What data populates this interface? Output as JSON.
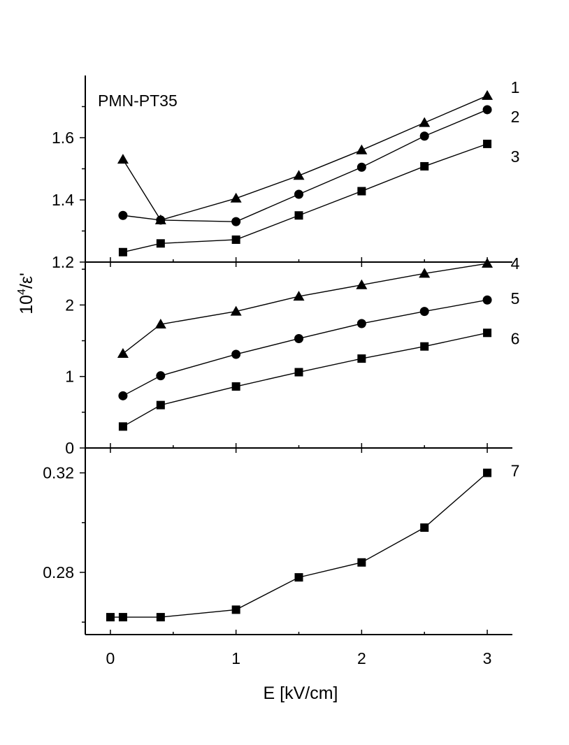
{
  "chart_data": {
    "type": "line",
    "xlabel": "E [kV/cm]",
    "ylabel_base": "10",
    "ylabel_sup": "4",
    "ylabel_rest": "/ε'",
    "xlim": [
      -0.2,
      3.2
    ],
    "xticks": [
      0,
      1,
      2,
      3
    ],
    "xtick_labels": [
      "0",
      "1",
      "2",
      "3"
    ],
    "colors": {
      "ink": "#000000",
      "background": "#ffffff"
    },
    "panels": [
      {
        "name": "top",
        "annotation": "PMN-PT35",
        "ylim": [
          1.2,
          1.8
        ],
        "yticks": [
          1.2,
          1.4,
          1.6
        ],
        "ytick_labels": [
          "1.2",
          "1.4",
          "1.6"
        ],
        "yminor": [
          1.3,
          1.5,
          1.7
        ],
        "series": [
          {
            "name": "1",
            "marker": "triangle",
            "x": [
              0.1,
              0.4,
              1,
              1.5,
              2,
              2.5,
              3
            ],
            "y": [
              1.53,
              1.335,
              1.405,
              1.478,
              1.56,
              1.648,
              1.735
            ]
          },
          {
            "name": "2",
            "marker": "circle",
            "x": [
              0.1,
              0.4,
              1,
              1.5,
              2,
              2.5,
              3
            ],
            "y": [
              1.35,
              1.335,
              1.33,
              1.418,
              1.505,
              1.605,
              1.69
            ]
          },
          {
            "name": "3",
            "marker": "square",
            "x": [
              0.1,
              0.4,
              1,
              1.5,
              2,
              2.5,
              3
            ],
            "y": [
              1.232,
              1.26,
              1.272,
              1.35,
              1.428,
              1.508,
              1.58
            ]
          }
        ]
      },
      {
        "name": "middle",
        "ylim": [
          0,
          2.6
        ],
        "yticks": [
          0,
          1,
          2
        ],
        "ytick_labels": [
          "0",
          "1",
          "2"
        ],
        "yminor": [
          0.5,
          1.5,
          2.5
        ],
        "series": [
          {
            "name": "4",
            "marker": "triangle",
            "x": [
              0.1,
              0.4,
              1,
              1.5,
              2,
              2.5,
              3
            ],
            "y": [
              1.32,
              1.73,
              1.91,
              2.12,
              2.28,
              2.44,
              2.58
            ]
          },
          {
            "name": "5",
            "marker": "circle",
            "x": [
              0.1,
              0.4,
              1,
              1.5,
              2,
              2.5,
              3
            ],
            "y": [
              0.73,
              1.01,
              1.31,
              1.53,
              1.74,
              1.91,
              2.07
            ]
          },
          {
            "name": "6",
            "marker": "square",
            "x": [
              0.1,
              0.4,
              1,
              1.5,
              2,
              2.5,
              3
            ],
            "y": [
              0.3,
              0.6,
              0.86,
              1.06,
              1.25,
              1.42,
              1.61
            ]
          }
        ]
      },
      {
        "name": "bottom",
        "ylim": [
          0.255,
          0.33
        ],
        "yticks": [
          0.28,
          0.32
        ],
        "ytick_labels": [
          "0.28",
          "0.32"
        ],
        "yminor": [
          0.26,
          0.3
        ],
        "series": [
          {
            "name": "7",
            "marker": "square",
            "x": [
              0,
              0.1,
              0.4,
              1,
              1.5,
              2,
              2.5,
              3
            ],
            "y": [
              0.262,
              0.262,
              0.262,
              0.265,
              0.278,
              0.284,
              0.298,
              0.32
            ]
          }
        ]
      }
    ]
  }
}
